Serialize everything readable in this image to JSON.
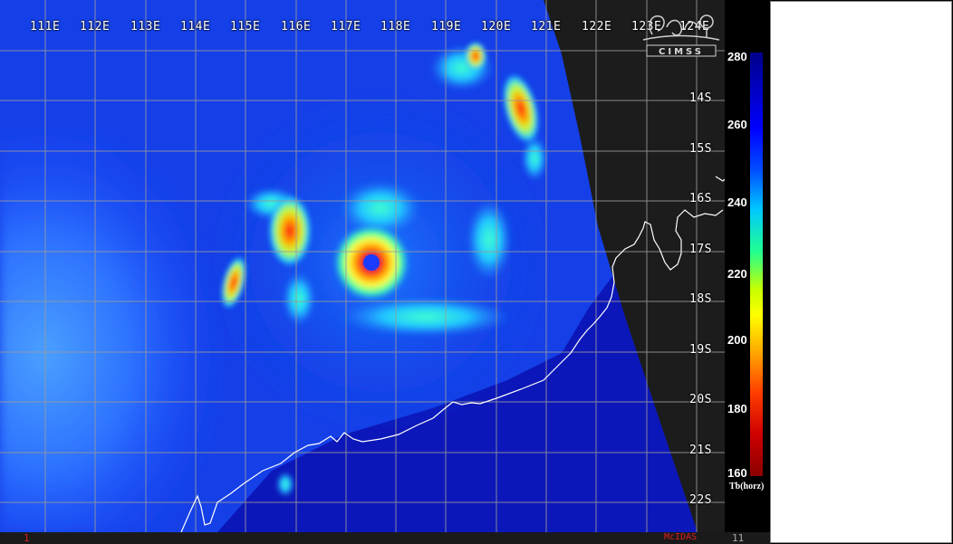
{
  "map": {
    "lon_labels": [
      "111E",
      "112E",
      "113E",
      "114E",
      "115E",
      "116E",
      "117E",
      "118E",
      "119E",
      "120E",
      "121E",
      "122E",
      "123E",
      "124E"
    ],
    "lat_labels": [
      "14S",
      "15S",
      "16S",
      "17S",
      "18S",
      "19S",
      "20S",
      "21S",
      "22S"
    ],
    "coastline_color": "#ffffff",
    "grid_color": "#9a9a9a",
    "no_data_color": "#1c1c1c"
  },
  "colorbar": {
    "ticks": [
      "280",
      "260",
      "240",
      "220",
      "200",
      "180",
      "160"
    ],
    "label": "Tb(horz)",
    "min": 160,
    "max": 280
  },
  "logo_text": "CIMSS",
  "footer": {
    "frame_number": "1",
    "software": "McIDAS",
    "frame_total": "11"
  }
}
